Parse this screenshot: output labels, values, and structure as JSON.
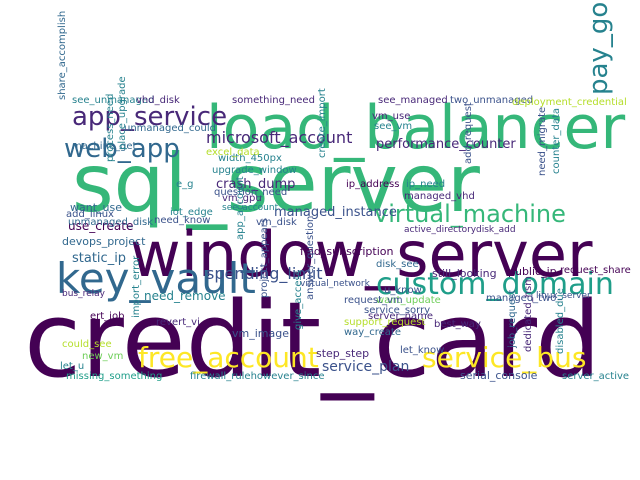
{
  "palette": {
    "dark_purple": "#440154",
    "purple": "#482878",
    "blue": "#3b528b",
    "teal_blue": "#31688e",
    "teal": "#26828e",
    "sea_green": "#1f9e89",
    "green": "#35b779",
    "light_green": "#6ece58",
    "lime": "#b5de2b",
    "yellow": "#fde725"
  },
  "words": [
    {
      "text": "credit_card",
      "color": "dark_purple"
    },
    {
      "text": "sql_server",
      "color": "green"
    },
    {
      "text": "window_server",
      "color": "dark_purple"
    },
    {
      "text": "load_balancer",
      "color": "green"
    },
    {
      "text": "key_vault",
      "color": "teal_blue"
    },
    {
      "text": "custom_domain",
      "color": "sea_green"
    },
    {
      "text": "free_account",
      "color": "yellow"
    },
    {
      "text": "service_bus",
      "color": "yellow"
    },
    {
      "text": "virtual_machine",
      "color": "green"
    },
    {
      "text": "app_service",
      "color": "purple"
    },
    {
      "text": "web_app",
      "color": "teal_blue"
    },
    {
      "text": "pay_go",
      "color": "teal"
    },
    {
      "text": "spending_limit",
      "color": "blue"
    },
    {
      "text": "microsoft_account",
      "color": "purple"
    },
    {
      "text": "performance_counter",
      "color": "purple"
    },
    {
      "text": "service_plan",
      "color": "blue"
    },
    {
      "text": "managed_instance",
      "color": "blue"
    },
    {
      "text": "devops_project",
      "color": "teal_blue"
    },
    {
      "text": "static_ip",
      "color": "teal_blue"
    },
    {
      "text": "crash_dump",
      "color": "purple"
    },
    {
      "text": "need_remove",
      "color": "teal"
    },
    {
      "text": "vm_image",
      "color": "blue"
    },
    {
      "text": "find_subscription",
      "color": "dark_purple"
    },
    {
      "text": "virtual_network",
      "color": "blue"
    },
    {
      "text": "still_looking",
      "color": "purple"
    },
    {
      "text": "public_ip",
      "color": "dark_purple"
    },
    {
      "text": "request_share",
      "color": "dark_purple"
    },
    {
      "text": "linux_server",
      "color": "blue"
    },
    {
      "text": "serial_console",
      "color": "blue"
    },
    {
      "text": "step_step",
      "color": "purple"
    },
    {
      "text": "best_way",
      "color": "purple"
    },
    {
      "text": "way_create",
      "color": "teal_blue"
    },
    {
      "text": "server_name",
      "color": "purple"
    },
    {
      "text": "support_request",
      "color": "lime"
    },
    {
      "text": "want_update",
      "color": "light_green"
    },
    {
      "text": "service_sorry",
      "color": "blue"
    },
    {
      "text": "managed_two",
      "color": "blue"
    },
    {
      "text": "let_know",
      "color": "blue"
    },
    {
      "text": "job_request",
      "color": "teal_blue"
    },
    {
      "text": "dedicated_hsm",
      "color": "purple"
    },
    {
      "text": "disabled_due",
      "color": "teal"
    },
    {
      "text": "server_active",
      "color": "teal"
    },
    {
      "text": "firewall_rulehowever_since",
      "color": "teal"
    },
    {
      "text": "missing_something",
      "color": "sea_green"
    },
    {
      "text": "revert_vi",
      "color": "purple"
    },
    {
      "text": "new_vm",
      "color": "light_green"
    },
    {
      "text": "could_see",
      "color": "lime"
    },
    {
      "text": "ert_job",
      "color": "dark_purple"
    },
    {
      "text": "bus_relay",
      "color": "purple"
    },
    {
      "text": "use_create",
      "color": "dark_purple"
    },
    {
      "text": "want_use",
      "color": "teal_blue"
    },
    {
      "text": "add_linux",
      "color": "blue"
    },
    {
      "text": "unmanaged_disk",
      "color": "teal_blue"
    },
    {
      "text": "see_unmanaged",
      "color": "teal"
    },
    {
      "text": "vhd_disk",
      "color": "purple"
    },
    {
      "text": "something_need",
      "color": "purple"
    },
    {
      "text": "see_managed",
      "color": "purple"
    },
    {
      "text": "two_unmanaged",
      "color": "blue"
    },
    {
      "text": "deployment_credential",
      "color": "lime"
    },
    {
      "text": "unmanaged_could",
      "color": "teal_blue"
    },
    {
      "text": "machine_get",
      "color": "teal_blue"
    },
    {
      "text": "vm_use",
      "color": "purple"
    },
    {
      "text": "see_vm",
      "color": "teal"
    },
    {
      "text": "width_450px",
      "color": "teal"
    },
    {
      "text": "upgrade_window",
      "color": "teal"
    },
    {
      "text": "vm_gpu",
      "color": "purple"
    },
    {
      "text": "ip_address",
      "color": "dark_purple"
    },
    {
      "text": "ip_need",
      "color": "teal"
    },
    {
      "text": "managed_vhd",
      "color": "purple"
    },
    {
      "text": "add_request",
      "color": "blue"
    },
    {
      "text": "question_need",
      "color": "blue"
    },
    {
      "text": "iot_edge",
      "color": "teal"
    },
    {
      "text": "need_know",
      "color": "blue"
    },
    {
      "text": "place_upgrade",
      "color": "teal"
    },
    {
      "text": "process_need",
      "color": "teal"
    },
    {
      "text": "share_accomplish",
      "color": "teal_blue"
    },
    {
      "text": "vm_disk",
      "color": "blue"
    },
    {
      "text": "disk_add",
      "color": "purple"
    },
    {
      "text": "active_directory",
      "color": "purple"
    },
    {
      "text": "disk_see",
      "color": "teal_blue"
    },
    {
      "text": "request_vm",
      "color": "blue"
    },
    {
      "text": "u_know",
      "color": "blue"
    },
    {
      "text": "answer_question",
      "color": "blue"
    },
    {
      "text": "give_access",
      "color": "teal"
    },
    {
      "text": "project_appears",
      "color": "blue"
    },
    {
      "text": "import_error",
      "color": "teal"
    },
    {
      "text": "let_u",
      "color": "teal"
    },
    {
      "text": "e_g",
      "color": "teal"
    },
    {
      "text": "excel_data",
      "color": "lime"
    },
    {
      "text": "see_account",
      "color": "teal"
    },
    {
      "text": "app_account",
      "color": "teal"
    },
    {
      "text": "create_import",
      "color": "teal"
    },
    {
      "text": "need_migrate",
      "color": "blue"
    },
    {
      "text": "counter_data",
      "color": "teal"
    }
  ]
}
